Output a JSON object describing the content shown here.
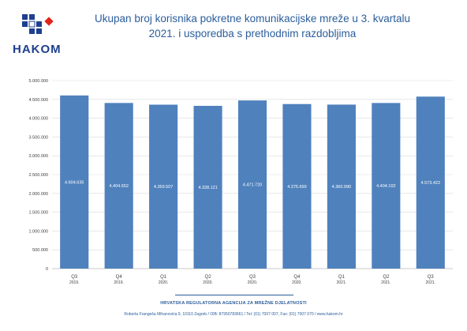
{
  "header": {
    "logo_text": "HAKOM",
    "title_line1": "Ukupan broj korisnika pokretne komunikacijske mreže u 3. kvartalu",
    "title_line2": "2021. i usporedba s prethodnim razdobljima"
  },
  "colors": {
    "bar": "#4f81bd",
    "title": "#2b5d9b",
    "logo_blue": "#1e3f8f",
    "logo_red": "#e2231a"
  },
  "chart_data": {
    "type": "bar",
    "categories": [
      "Q3 2019.",
      "Q4 2019.",
      "Q1 2020.",
      "Q2 2020.",
      "Q3 2020.",
      "Q4 2020.",
      "Q1 2021.",
      "Q2 2021.",
      "Q3 2021."
    ],
    "category_lines": [
      [
        "Q3",
        "2019."
      ],
      [
        "Q4",
        "2019."
      ],
      [
        "Q1",
        "2020."
      ],
      [
        "Q2",
        "2020."
      ],
      [
        "Q3",
        "2020."
      ],
      [
        "Q4",
        "2020."
      ],
      [
        "Q1",
        "2021."
      ],
      [
        "Q2",
        "2021."
      ],
      [
        "Q3",
        "2021."
      ]
    ],
    "values": [
      4604635,
      4404652,
      4359507,
      4328121,
      4471720,
      4375699,
      4360990,
      4404102,
      4573422
    ],
    "value_labels": [
      "4.604.635",
      "4.404.652",
      "4.359.507",
      "4.328.121",
      "4.471.720",
      "4.375.699",
      "4.360.990",
      "4.404.102",
      "4.573.422"
    ],
    "ylim": [
      0,
      5000000
    ],
    "y_ticks": [
      0,
      500000,
      1000000,
      1500000,
      2000000,
      2500000,
      3000000,
      3500000,
      4000000,
      4500000,
      5000000
    ],
    "y_tick_labels": [
      "0",
      "500.000",
      "1.000.000",
      "1.500.000",
      "2.000.000",
      "2.500.000",
      "3.000.000",
      "3.500.000",
      "4.000.000",
      "4.500.000",
      "5.000.000"
    ],
    "grid": true,
    "legend": "none"
  },
  "footer": {
    "org": "HRVATSKA REGULATORNA AGENCIJA ZA MREŽNE DJELATNOSTI",
    "address": "Roberta Frangeša Mihanovića 9, 10110 Zagreb / OIB: 87950783661 / Tel: (01) 7007 007, Fax: (01) 7007 070 / www.hakom.hr"
  }
}
